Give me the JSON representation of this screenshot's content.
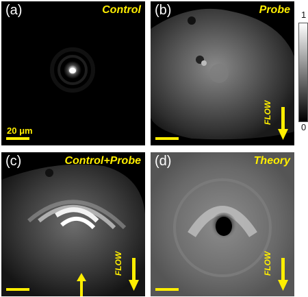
{
  "panels": [
    {
      "label": "(a)",
      "title": "Control",
      "scalebar_label": "20 μm"
    },
    {
      "label": "(b)",
      "title": "Probe",
      "flow_label": "FLOW"
    },
    {
      "label": "(c)",
      "title": "Control+Probe",
      "flow_label": "FLOW"
    },
    {
      "label": "(d)",
      "title": "Theory",
      "flow_label": "FLOW"
    }
  ],
  "colorbar": {
    "max_label": "1",
    "min_label": "0",
    "colormap": "grayscale"
  },
  "colors": {
    "annotation": "#ffee00",
    "background": "#000000"
  }
}
